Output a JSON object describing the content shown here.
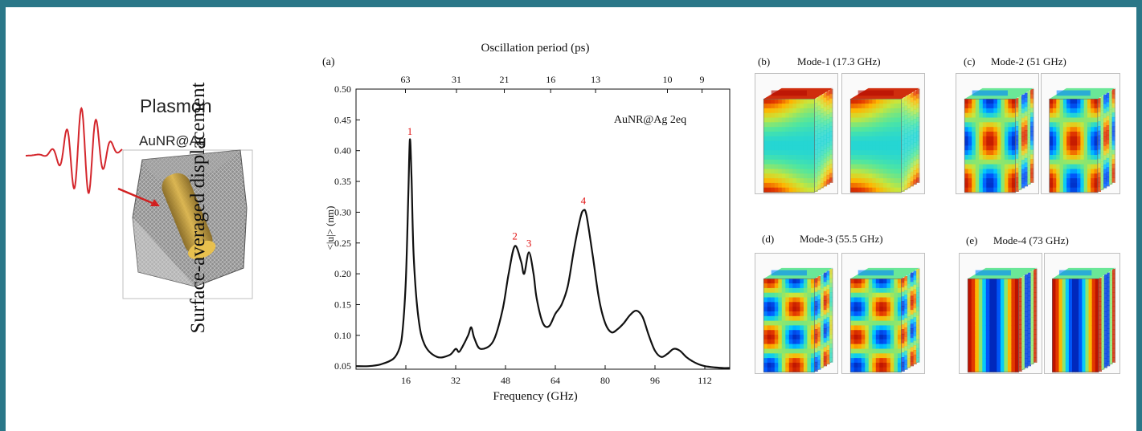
{
  "left_panel": {
    "title": "Plasmon",
    "subtitle": "AuNR@Ag"
  },
  "figure_ylabel": "Surface-averaged displacement",
  "chart_data": {
    "type": "line",
    "panel_label": "(a)",
    "annotation": "AuNR@Ag 2eq",
    "xlabel": "Frequency (GHz)",
    "ylabel": "<|u|> (nm)",
    "top_xlabel": "Oscillation period (ps)",
    "xlim": [
      0,
      120
    ],
    "ylim": [
      0.045,
      0.5
    ],
    "x_ticks": [
      16,
      32,
      48,
      64,
      80,
      96,
      112
    ],
    "y_ticks": [
      0.05,
      0.1,
      0.15,
      0.2,
      0.25,
      0.3,
      0.35,
      0.4,
      0.45,
      0.5
    ],
    "y_tick_labels": [
      "0.05",
      "0.10",
      "0.15",
      "0.20",
      "0.25",
      "0.30",
      "0.35",
      "0.40",
      "0.45",
      "0.50"
    ],
    "top_ticks": [
      "63",
      "31",
      "21",
      "16",
      "13",
      "10",
      "9"
    ],
    "grid": false,
    "peak_labels": [
      {
        "text": "1",
        "x": 17.3,
        "y": 0.418
      },
      {
        "text": "2",
        "x": 51,
        "y": 0.248
      },
      {
        "text": "3",
        "x": 55.5,
        "y": 0.236
      },
      {
        "text": "4",
        "x": 73,
        "y": 0.305
      }
    ],
    "series": [
      {
        "x": [
          0,
          4,
          8,
          12,
          14,
          15,
          16,
          16.8,
          17.3,
          17.8,
          18.5,
          20,
          22,
          26,
          30,
          32,
          33,
          34,
          36,
          37,
          38,
          40,
          44,
          47,
          49,
          51,
          53,
          54,
          55.5,
          57,
          58,
          60,
          62,
          64,
          66,
          68,
          70,
          72,
          73,
          74,
          76,
          78,
          80,
          82,
          84,
          86,
          88,
          90,
          92,
          94,
          96,
          98,
          100,
          102,
          104,
          106,
          108,
          110,
          112,
          115,
          118,
          120
        ],
        "y": [
          0.05,
          0.05,
          0.053,
          0.062,
          0.08,
          0.11,
          0.19,
          0.33,
          0.418,
          0.36,
          0.23,
          0.13,
          0.085,
          0.065,
          0.068,
          0.078,
          0.073,
          0.08,
          0.1,
          0.113,
          0.095,
          0.078,
          0.09,
          0.14,
          0.2,
          0.245,
          0.22,
          0.2,
          0.235,
          0.2,
          0.16,
          0.12,
          0.115,
          0.135,
          0.15,
          0.18,
          0.24,
          0.29,
          0.303,
          0.295,
          0.23,
          0.16,
          0.12,
          0.105,
          0.11,
          0.12,
          0.133,
          0.14,
          0.13,
          0.1,
          0.075,
          0.065,
          0.07,
          0.078,
          0.075,
          0.065,
          0.058,
          0.053,
          0.05,
          0.048,
          0.047,
          0.047
        ]
      }
    ]
  },
  "modes": [
    {
      "label": "(b)",
      "title": "Mode-1 (17.3 GHz)"
    },
    {
      "label": "(c)",
      "title": "Mode-2 (51 GHz)"
    },
    {
      "label": "(d)",
      "title": "Mode-3 (55.5 GHz)"
    },
    {
      "label": "(e)",
      "title": "Mode-4 (73 GHz)"
    }
  ],
  "colors": {
    "frame": "#2a7788",
    "curve": "#111111",
    "peak_label": "#e01010",
    "pulse": "#d4262c",
    "arrow": "#d12020",
    "rod": "#c9a035"
  }
}
